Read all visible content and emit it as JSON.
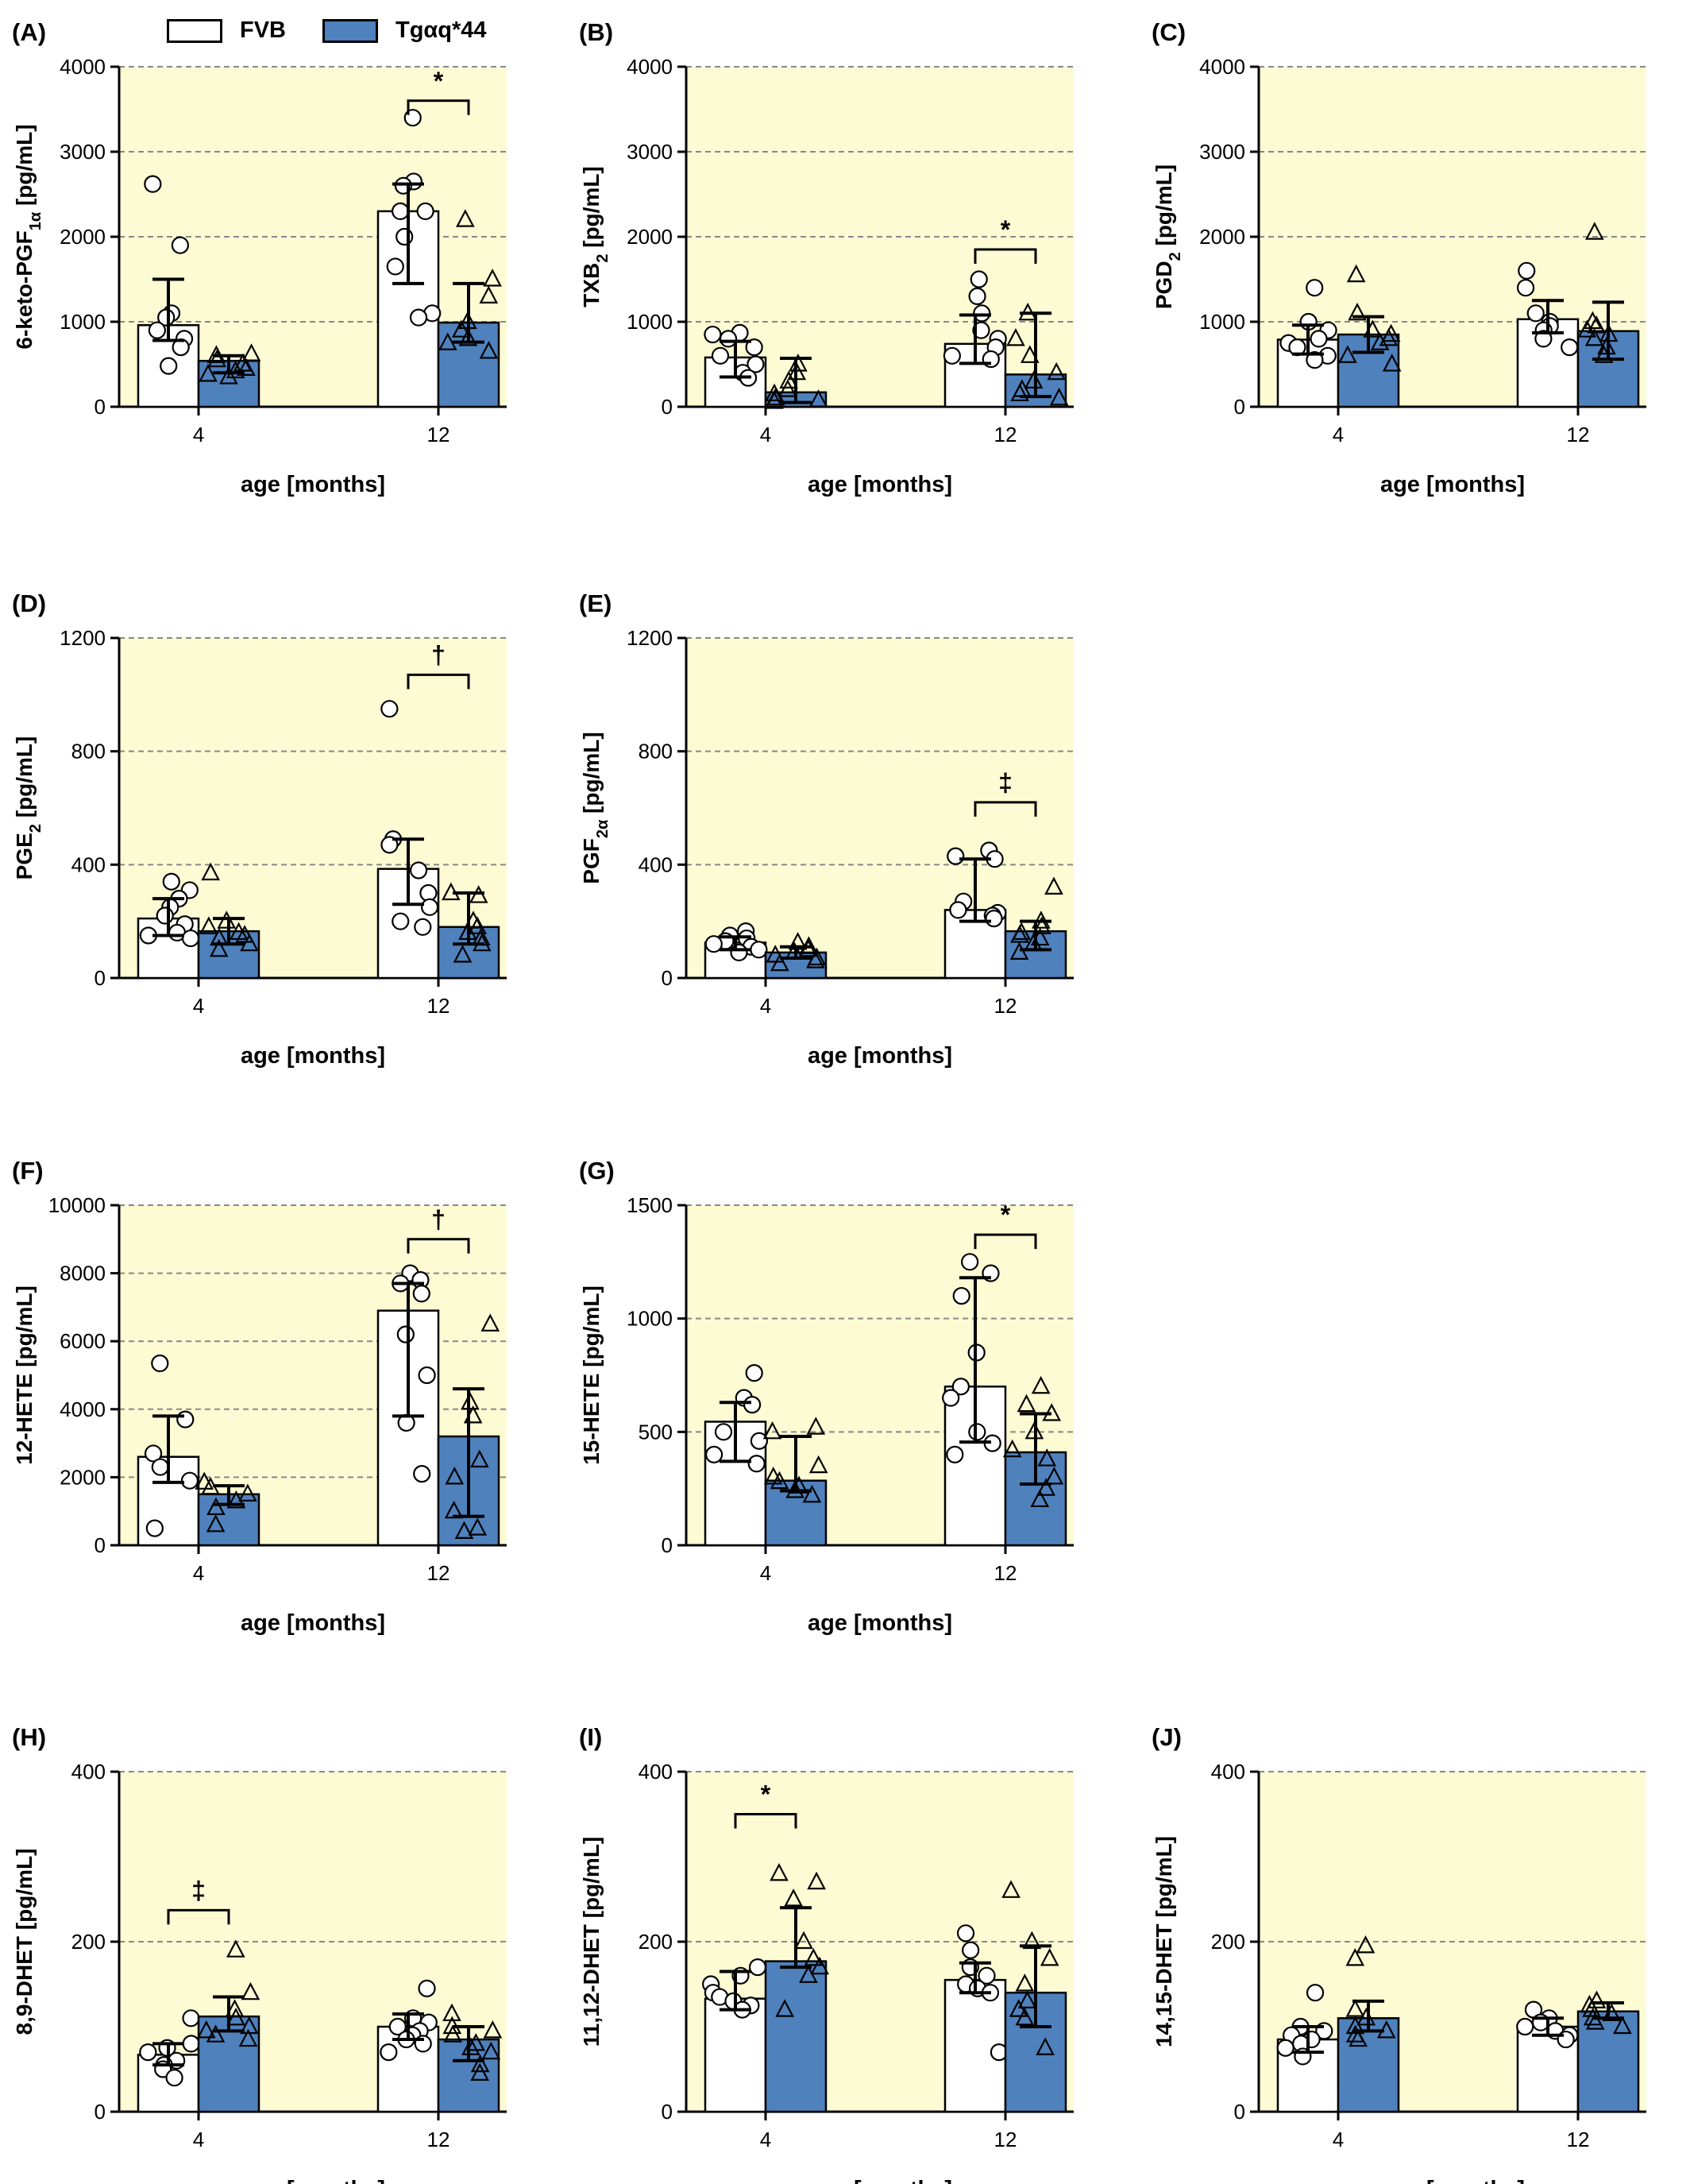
{
  "figure": {
    "legend": [
      {
        "name": "FVB",
        "color": "#ffffff"
      },
      {
        "name": "Tgαq*44",
        "color": "#4f81bd"
      }
    ],
    "colors": {
      "panel_background": "#fdfbd3",
      "fvb_bar": "#ffffff",
      "tg_bar": "#4f81bd",
      "grid": "#888888"
    }
  },
  "chart_data": [
    {
      "panel": "(A)",
      "type": "bar",
      "ylabel": "6-keto-PGF",
      "ysub": "1α",
      "yunit": " [pg/mL]",
      "xlabel": "age [months]",
      "categories": [
        "4",
        "12"
      ],
      "ylim": [
        0,
        4000
      ],
      "yticks": [
        0,
        1000,
        2000,
        3000,
        4000
      ],
      "grid": true,
      "series": [
        {
          "name": "FVB",
          "marker": "circle",
          "values": [
            960,
            2300
          ],
          "sd": [
            [
              780,
              1500
            ],
            [
              1450,
              2620
            ]
          ],
          "points": [
            [
              2620,
              1900,
              1100,
              1050,
              900,
              800,
              700,
              480
            ],
            [
              3400,
              2650,
              2600,
              2300,
              2300,
              2000,
              1650,
              1100,
              1050
            ]
          ]
        },
        {
          "name": "Tgαq*44",
          "marker": "triangle",
          "values": [
            540,
            990
          ],
          "sd": [
            [
              400,
              600
            ],
            [
              760,
              1450
            ]
          ],
          "points": [
            [
              620,
              600,
              550,
              500,
              450,
              420,
              380,
              350
            ],
            [
              2200,
              1500,
              1300,
              1000,
              900,
              800,
              750,
              650
            ]
          ]
        }
      ],
      "annotations": [
        {
          "text": "*",
          "category": "12",
          "y": 3600
        }
      ]
    },
    {
      "panel": "(B)",
      "type": "bar",
      "ylabel": "TXB",
      "ysub": "2",
      "yunit": " [pg/mL]",
      "xlabel": "age [months]",
      "categories": [
        "4",
        "12"
      ],
      "ylim": [
        0,
        4000
      ],
      "yticks": [
        0,
        1000,
        2000,
        3000,
        4000
      ],
      "grid": true,
      "series": [
        {
          "name": "FVB",
          "marker": "circle",
          "values": [
            580,
            740
          ],
          "sd": [
            [
              350,
              770
            ],
            [
              510,
              1080
            ]
          ],
          "points": [
            [
              870,
              850,
              800,
              700,
              600,
              500,
              400,
              340
            ],
            [
              1500,
              1300,
              1100,
              900,
              800,
              700,
              600,
              560
            ]
          ]
        },
        {
          "name": "Tgαq*44",
          "marker": "triangle",
          "values": [
            170,
            380
          ],
          "sd": [
            [
              50,
              570
            ],
            [
              120,
              1100
            ]
          ],
          "points": [
            [
              500,
              400,
              300,
              200,
              150,
              100,
              80,
              60
            ],
            [
              1100,
              800,
              600,
              400,
              300,
              200,
              150,
              100
            ]
          ]
        }
      ],
      "annotations": [
        {
          "text": "*",
          "category": "12",
          "y": 1850
        }
      ]
    },
    {
      "panel": "(C)",
      "type": "bar",
      "ylabel": "PGD",
      "ysub": "2",
      "yunit": " [pg/mL]",
      "xlabel": "age [months]",
      "categories": [
        "4",
        "12"
      ],
      "ylim": [
        0,
        4000
      ],
      "yticks": [
        0,
        1000,
        2000,
        3000,
        4000
      ],
      "grid": true,
      "series": [
        {
          "name": "FVB",
          "marker": "circle",
          "values": [
            790,
            1030
          ],
          "sd": [
            [
              620,
              960
            ],
            [
              870,
              1250
            ]
          ],
          "points": [
            [
              1400,
              1000,
              900,
              800,
              750,
              700,
              600,
              550
            ],
            [
              1600,
              1400,
              1100,
              1000,
              950,
              900,
              800,
              700
            ]
          ]
        },
        {
          "name": "Tgαq*44",
          "marker": "triangle",
          "values": [
            850,
            890
          ],
          "sd": [
            [
              640,
              1060
            ],
            [
              560,
              1230
            ]
          ],
          "points": [
            [
              1550,
              1100,
              900,
              850,
              800,
              750,
              600,
              500
            ],
            [
              2050,
              1000,
              950,
              900,
              850,
              800,
              700,
              600
            ]
          ]
        }
      ],
      "annotations": []
    },
    {
      "panel": "(D)",
      "type": "bar",
      "ylabel": "PGE",
      "ysub": "2",
      "yunit": " [pg/mL]",
      "xlabel": "age [months]",
      "categories": [
        "4",
        "12"
      ],
      "ylim": [
        0,
        1200
      ],
      "yticks": [
        0,
        400,
        800,
        1200
      ],
      "grid": true,
      "series": [
        {
          "name": "FVB",
          "marker": "circle",
          "values": [
            210,
            385
          ],
          "sd": [
            [
              150,
              280
            ],
            [
              260,
              490
            ]
          ],
          "points": [
            [
              340,
              310,
              280,
              250,
              220,
              190,
              160,
              150,
              140
            ],
            [
              950,
              490,
              470,
              380,
              300,
              250,
              200,
              180
            ]
          ]
        },
        {
          "name": "Tgαq*44",
          "marker": "triangle",
          "values": [
            165,
            180
          ],
          "sd": [
            [
              120,
              210
            ],
            [
              120,
              300
            ]
          ],
          "points": [
            [
              370,
              200,
              180,
              160,
              150,
              140,
              120,
              100
            ],
            [
              300,
              290,
              200,
              180,
              160,
              140,
              120,
              80
            ]
          ]
        }
      ],
      "annotations": [
        {
          "text": "†",
          "category": "12",
          "y": 1070
        }
      ]
    },
    {
      "panel": "(E)",
      "type": "bar",
      "ylabel": "PGF",
      "ysub": "2α",
      "yunit": " [pg/mL]",
      "xlabel": "age [months]",
      "categories": [
        "4",
        "12"
      ],
      "ylim": [
        0,
        1200
      ],
      "yticks": [
        0,
        400,
        800,
        1200
      ],
      "grid": true,
      "series": [
        {
          "name": "FVB",
          "marker": "circle",
          "values": [
            125,
            240
          ],
          "sd": [
            [
              100,
              145
            ],
            [
              200,
              420
            ]
          ],
          "points": [
            [
              165,
              150,
              140,
              130,
              120,
              110,
              100,
              90
            ],
            [
              450,
              430,
              420,
              270,
              240,
              230,
              220,
              210
            ]
          ]
        },
        {
          "name": "Tgαq*44",
          "marker": "triangle",
          "values": [
            90,
            165
          ],
          "sd": [
            [
              70,
              110
            ],
            [
              100,
              200
            ]
          ],
          "points": [
            [
              125,
              110,
              100,
              90,
              80,
              70,
              60,
              50
            ],
            [
              320,
              200,
              180,
              160,
              150,
              140,
              120,
              90
            ]
          ]
        }
      ],
      "annotations": [
        {
          "text": "‡",
          "category": "12",
          "y": 620
        }
      ]
    },
    {
      "panel": "(F)",
      "type": "bar",
      "ylabel": "12-HETE",
      "ysub": "",
      "yunit": " [pg/mL]",
      "xlabel": "age [months]",
      "categories": [
        "4",
        "12"
      ],
      "ylim": [
        0,
        10000
      ],
      "yticks": [
        0,
        2000,
        4000,
        6000,
        8000,
        10000
      ],
      "grid": true,
      "series": [
        {
          "name": "FVB",
          "marker": "circle",
          "values": [
            2600,
            6900
          ],
          "sd": [
            [
              1850,
              3800
            ],
            [
              3800,
              7700
            ]
          ],
          "points": [
            [
              5350,
              3700,
              2700,
              2300,
              1900,
              500
            ],
            [
              8000,
              7800,
              7700,
              7400,
              6200,
              5000,
              3600,
              2100
            ]
          ]
        },
        {
          "name": "Tgαq*44",
          "marker": "triangle",
          "values": [
            1500,
            3200
          ],
          "sd": [
            [
              1200,
              1750
            ],
            [
              850,
              4600
            ]
          ],
          "points": [
            [
              1850,
              1700,
              1500,
              1300,
              1100,
              600
            ],
            [
              6500,
              4200,
              3800,
              2500,
              2000,
              1000,
              500,
              400
            ]
          ]
        }
      ],
      "annotations": [
        {
          "text": "†",
          "category": "12",
          "y": 9000
        }
      ]
    },
    {
      "panel": "(G)",
      "type": "bar",
      "ylabel": "15-HETE",
      "ysub": "",
      "yunit": " [pg/mL]",
      "xlabel": "age [months]",
      "categories": [
        "4",
        "12"
      ],
      "ylim": [
        0,
        1500
      ],
      "yticks": [
        0,
        500,
        1000,
        1500
      ],
      "grid": true,
      "series": [
        {
          "name": "FVB",
          "marker": "circle",
          "values": [
            545,
            700
          ],
          "sd": [
            [
              370,
              630
            ],
            [
              455,
              1180
            ]
          ],
          "points": [
            [
              760,
              650,
              620,
              500,
              460,
              400,
              360
            ],
            [
              1250,
              1200,
              1100,
              850,
              700,
              650,
              500,
              450,
              400
            ]
          ]
        },
        {
          "name": "Tgαq*44",
          "marker": "triangle",
          "values": [
            285,
            410
          ],
          "sd": [
            [
              240,
              480
            ],
            [
              270,
              580
            ]
          ],
          "points": [
            [
              520,
              500,
              350,
              300,
              280,
              260,
              240,
              220
            ],
            [
              700,
              620,
              580,
              500,
              420,
              380,
              300,
              250,
              200
            ]
          ]
        }
      ],
      "annotations": [
        {
          "text": "*",
          "category": "12",
          "y": 1370
        }
      ]
    },
    {
      "panel": "(H)",
      "type": "bar",
      "ylabel": "8,9-DHET",
      "ysub": "",
      "yunit": " [pg/mL]",
      "xlabel": "age [months]",
      "categories": [
        "4",
        "12"
      ],
      "ylim": [
        0,
        400
      ],
      "yticks": [
        0,
        200,
        400
      ],
      "grid": true,
      "series": [
        {
          "name": "FVB",
          "marker": "circle",
          "values": [
            67,
            100
          ],
          "sd": [
            [
              55,
              80
            ],
            [
              85,
              115
            ]
          ],
          "points": [
            [
              110,
              80,
              75,
              70,
              60,
              55,
              50,
              40
            ],
            [
              145,
              110,
              105,
              100,
              95,
              90,
              85,
              80,
              70
            ]
          ]
        },
        {
          "name": "Tgαq*44",
          "marker": "triangle",
          "values": [
            112,
            85
          ],
          "sd": [
            [
              95,
              135
            ],
            [
              60,
              100
            ]
          ],
          "points": [
            [
              190,
              140,
              120,
              110,
              100,
              95,
              90,
              85
            ],
            [
              115,
              100,
              95,
              90,
              80,
              75,
              70,
              55,
              45
            ]
          ]
        }
      ],
      "annotations": [
        {
          "text": "‡",
          "category": "4",
          "y": 237
        }
      ]
    },
    {
      "panel": "(I)",
      "type": "bar",
      "ylabel": "11,12-DHET",
      "ysub": "",
      "yunit": " [pg/mL]",
      "xlabel": "age [months]",
      "categories": [
        "4",
        "12"
      ],
      "ylim": [
        0,
        400
      ],
      "yticks": [
        0,
        200,
        400
      ],
      "grid": true,
      "series": [
        {
          "name": "FVB",
          "marker": "circle",
          "values": [
            133,
            155
          ],
          "sd": [
            [
              120,
              165
            ],
            [
              140,
              175
            ]
          ],
          "points": [
            [
              170,
              160,
              150,
              140,
              135,
              130,
              125,
              120
            ],
            [
              210,
              190,
              170,
              160,
              150,
              145,
              140,
              70
            ]
          ]
        },
        {
          "name": "Tgαq*44",
          "marker": "triangle",
          "values": [
            177,
            140
          ],
          "sd": [
            [
              170,
              240
            ],
            [
              100,
              195
            ]
          ],
          "points": [
            [
              280,
              270,
              250,
              200,
              180,
              170,
              160,
              120
            ],
            [
              260,
              200,
              180,
              150,
              130,
              120,
              110,
              75
            ]
          ]
        }
      ],
      "annotations": [
        {
          "text": "*",
          "category": "4",
          "y": 350
        }
      ]
    },
    {
      "panel": "(J)",
      "type": "bar",
      "ylabel": "14,15-DHET",
      "ysub": "",
      "yunit": " [pg/mL]",
      "xlabel": "age [months]",
      "categories": [
        "4",
        "12"
      ],
      "ylim": [
        0,
        400
      ],
      "yticks": [
        0,
        200,
        400
      ],
      "grid": true,
      "series": [
        {
          "name": "FVB",
          "marker": "circle",
          "values": [
            85,
            100
          ],
          "sd": [
            [
              70,
              100
            ],
            [
              90,
              110
            ]
          ],
          "points": [
            [
              140,
              100,
              95,
              90,
              85,
              80,
              75,
              65
            ],
            [
              120,
              110,
              105,
              100,
              95,
              90,
              85
            ]
          ]
        },
        {
          "name": "Tgαq*44",
          "marker": "triangle",
          "values": [
            110,
            118
          ],
          "sd": [
            [
              95,
              130
            ],
            [
              110,
              128
            ]
          ],
          "points": [
            [
              195,
              180,
              120,
              110,
              100,
              95,
              90,
              85
            ],
            [
              130,
              125,
              120,
              115,
              110,
              105,
              100
            ]
          ]
        }
      ],
      "annotations": []
    }
  ]
}
